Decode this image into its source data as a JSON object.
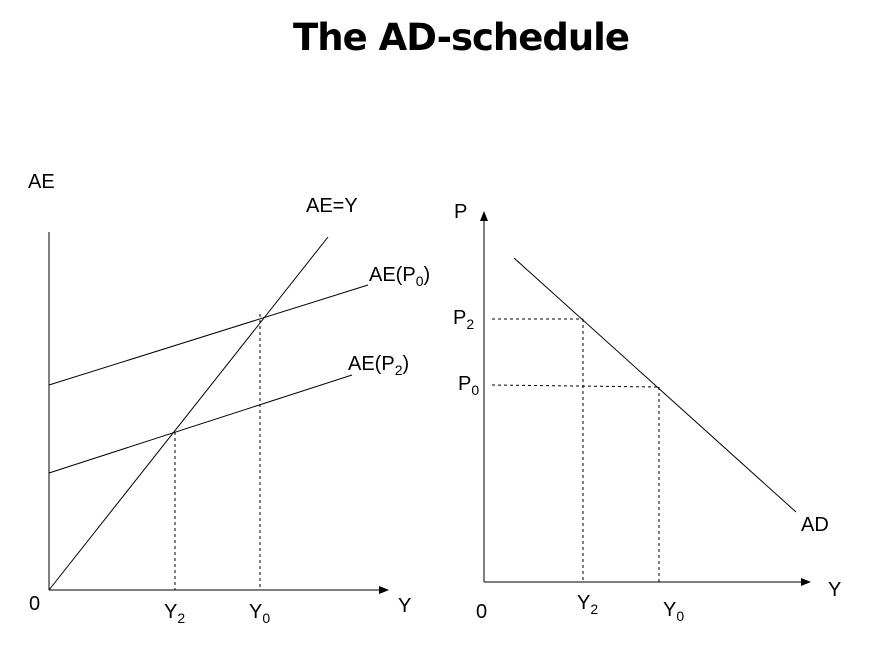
{
  "title": "The AD-schedule",
  "left_panel": {
    "y_axis_label": "AE",
    "x_axis_label": "Y",
    "origin_label": "0",
    "line_ae_eq_y_label": "AE=Y",
    "line_ae_p0": {
      "prefix": "AE(P",
      "sub": "0",
      "suffix": ")"
    },
    "line_ae_p2": {
      "prefix": "AE(P",
      "sub": "2",
      "suffix": ")"
    },
    "tick_y2": {
      "base": "Y",
      "sub": "2"
    },
    "tick_y0": {
      "base": "Y",
      "sub": "0"
    }
  },
  "right_panel": {
    "y_axis_label": "P",
    "x_axis_label": "Y",
    "origin_label": "0",
    "curve_label": "AD",
    "tick_p2": {
      "base": "P",
      "sub": "2"
    },
    "tick_p0": {
      "base": "P",
      "sub": "0"
    },
    "tick_y2": {
      "base": "Y",
      "sub": "2"
    },
    "tick_y0": {
      "base": "Y",
      "sub": "0"
    }
  }
}
